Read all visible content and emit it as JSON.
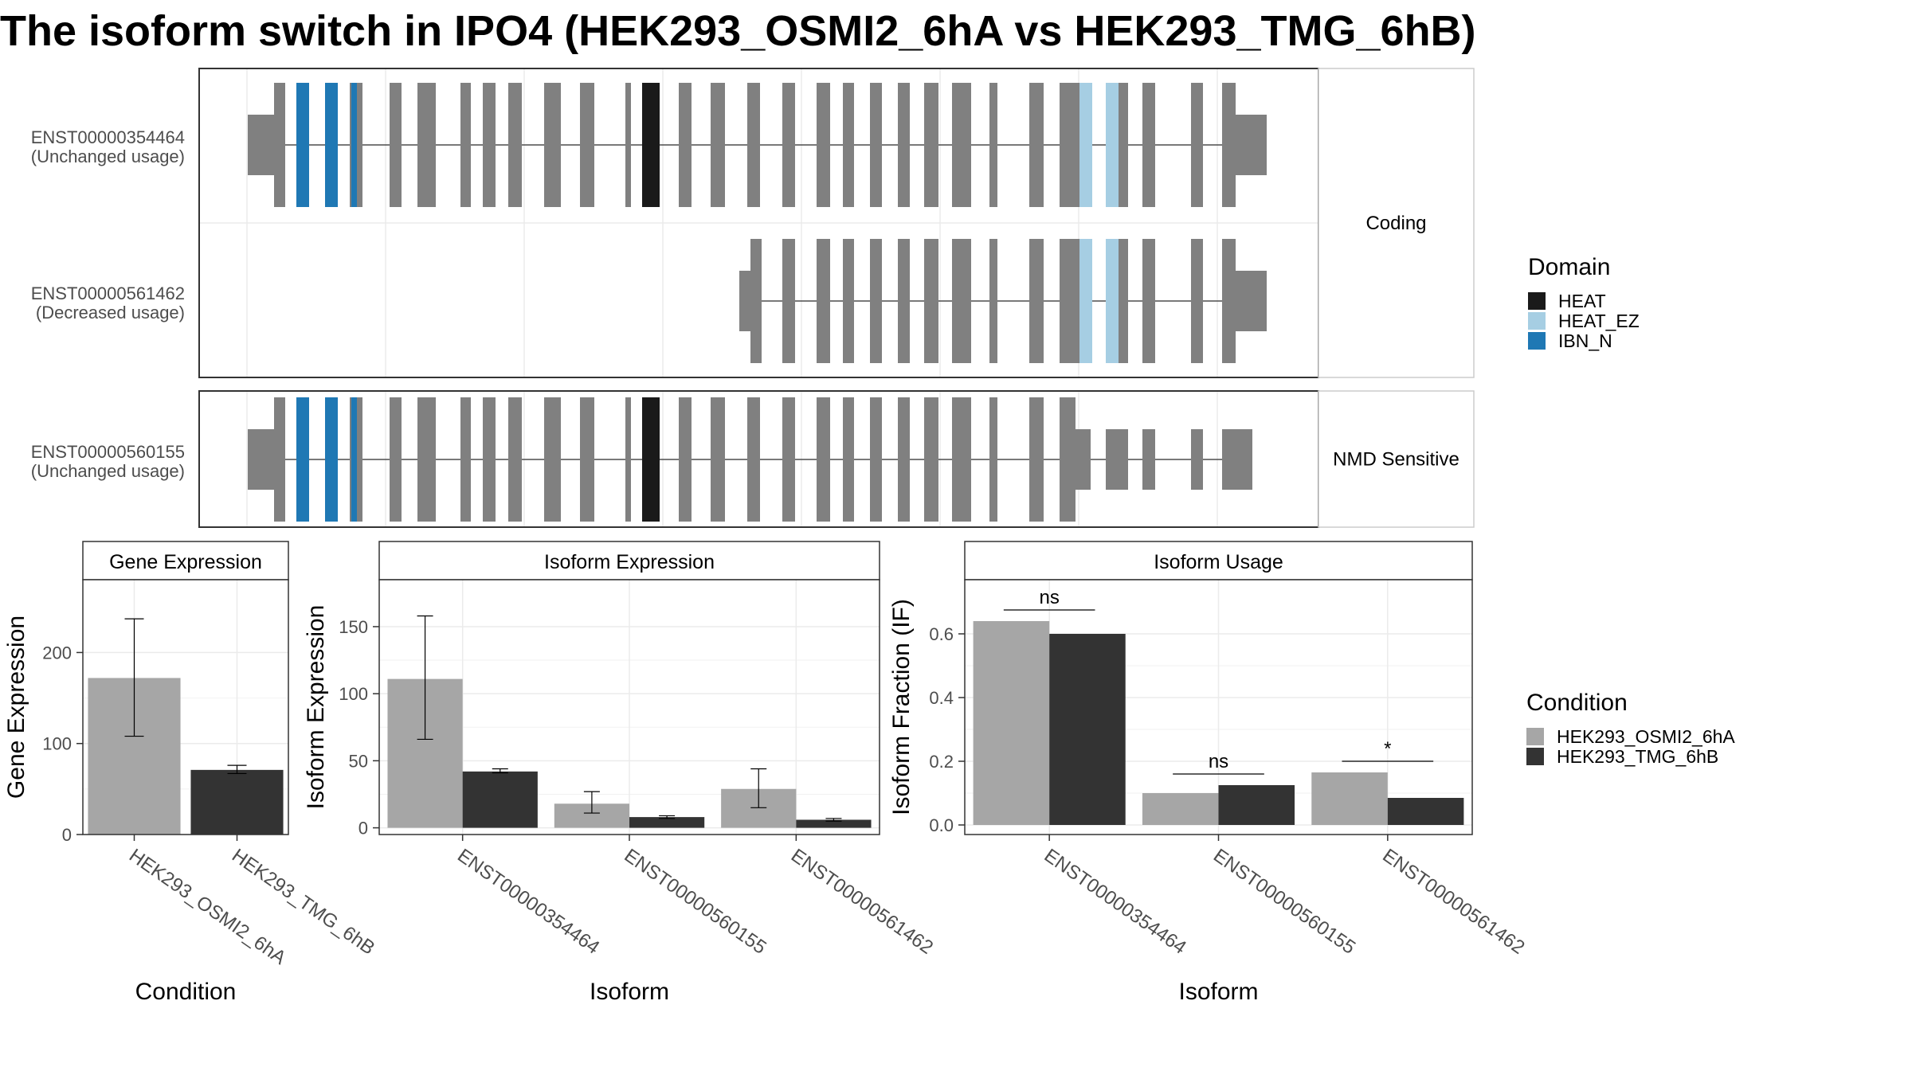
{
  "title": "The isoform switch in IPO4 (HEK293_OSMI2_6hA vs HEK293_TMG_6hB)",
  "colors": {
    "exon": "#808080",
    "HEAT": "#1a1a1a",
    "HEAT_EZ": "#a6cee3",
    "IBN_N": "#1f78b4",
    "cond_a": "#a6a6a6",
    "cond_b": "#333333"
  },
  "legends": {
    "domain": {
      "title": "Domain",
      "items": [
        {
          "label": "HEAT",
          "color": "#1a1a1a"
        },
        {
          "label": "HEAT_EZ",
          "color": "#a6cee3"
        },
        {
          "label": "IBN_N",
          "color": "#1f78b4"
        }
      ]
    },
    "condition": {
      "title": "Condition",
      "items": [
        {
          "label": "HEK293_OSMI2_6hA",
          "color": "#a6a6a6"
        },
        {
          "label": "HEK293_TMG_6hB",
          "color": "#333333"
        }
      ]
    }
  },
  "chart_data": [
    {
      "type": "gene-structure",
      "panels": [
        {
          "strip": "Coding",
          "tracks": [
            {
              "name": "ENST00000354464",
              "status": "(Unchanged usage)",
              "structure": "full"
            },
            {
              "name": "ENST00000561462",
              "status": "(Decreased usage)",
              "structure": "partial"
            }
          ]
        },
        {
          "strip": "NMD Sensitive",
          "tracks": [
            {
              "name": "ENST00000560155",
              "status": "(Unchanged usage)",
              "structure": "nmd"
            }
          ]
        }
      ]
    },
    {
      "type": "bar",
      "title": "Gene Expression",
      "xlabel": "Condition",
      "ylabel": "Gene Expression",
      "categories": [
        "HEK293_OSMI2_6hA",
        "HEK293_TMG_6hB"
      ],
      "values": [
        172,
        71
      ],
      "err_low": [
        108,
        67
      ],
      "err_high": [
        237,
        76
      ],
      "ylim": [
        0,
        280
      ],
      "yticks": [
        0,
        100,
        200
      ]
    },
    {
      "type": "bar",
      "title": "Isoform Expression",
      "xlabel": "Isoform",
      "ylabel": "Isoform Expression",
      "categories": [
        "ENST00000354464",
        "ENST00000560155",
        "ENST00000561462"
      ],
      "series": [
        {
          "name": "HEK293_OSMI2_6hA",
          "values": [
            111,
            18,
            29
          ],
          "err_low": [
            66,
            11,
            15
          ],
          "err_high": [
            158,
            27,
            44
          ]
        },
        {
          "name": "HEK293_TMG_6hB",
          "values": [
            42,
            8,
            6
          ],
          "err_low": [
            41,
            7,
            5
          ],
          "err_high": [
            44,
            9,
            7
          ]
        }
      ],
      "ylim": [
        -5,
        185
      ],
      "yticks": [
        0,
        50,
        100,
        150
      ]
    },
    {
      "type": "bar",
      "title": "Isoform Usage",
      "xlabel": "Isoform",
      "ylabel": "Isoform Fraction (IF)",
      "categories": [
        "ENST00000354464",
        "ENST00000560155",
        "ENST00000561462"
      ],
      "series": [
        {
          "name": "HEK293_OSMI2_6hA",
          "values": [
            0.64,
            0.1,
            0.165
          ]
        },
        {
          "name": "HEK293_TMG_6hB",
          "values": [
            0.6,
            0.125,
            0.085
          ]
        }
      ],
      "significance": [
        "ns",
        "ns",
        "*"
      ],
      "sig_y": [
        0.675,
        0.16,
        0.2
      ],
      "ylim": [
        -0.03,
        0.77
      ],
      "yticks": [
        0.0,
        0.2,
        0.4,
        0.6
      ]
    }
  ]
}
